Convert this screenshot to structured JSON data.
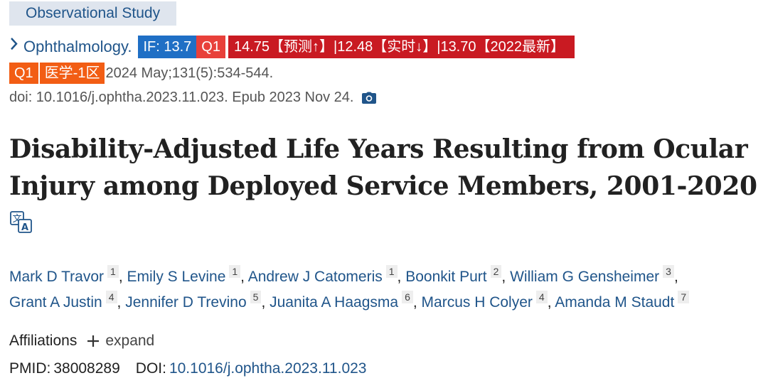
{
  "article": {
    "type_tag": "Observational Study",
    "journal": {
      "name": "Ophthalmology.",
      "impact_factor": "IF: 13.7",
      "quartile": "Q1",
      "prediction": "14.75【预测↑】|12.48【实时↓】|13.70【2022最新】",
      "cas_quartile": "Q1",
      "cas_zone": "医学-1区"
    },
    "citation": "2024 May;131(5):534-544.",
    "doi_epub": "doi: 10.1016/j.ophtha.2023.11.023. Epub 2023 Nov 24.",
    "title_line1": "Disability-Adjusted Life Years Resulting from Ocular",
    "title_line2": "Injury among Deployed Service Members, 2001-2020",
    "authors": [
      {
        "name": "Mark D Travor",
        "aff": "1"
      },
      {
        "name": "Emily S Levine",
        "aff": "1"
      },
      {
        "name": "Andrew J Catomeris",
        "aff": "1"
      },
      {
        "name": "Boonkit Purt",
        "aff": "2"
      },
      {
        "name": "William G Gensheimer",
        "aff": "3"
      },
      {
        "name": "Grant A Justin",
        "aff": "4"
      },
      {
        "name": "Jennifer D Trevino",
        "aff": "5"
      },
      {
        "name": "Juanita A Haagsma",
        "aff": "6"
      },
      {
        "name": "Marcus H Colyer",
        "aff": "4"
      },
      {
        "name": "Amanda M Staudt",
        "aff": "7"
      }
    ],
    "affiliations_label": "Affiliations",
    "expand_label": "expand",
    "pmid_label": "PMID:",
    "pmid": "38008289",
    "doi_label": "DOI:",
    "doi": "10.1016/j.ophtha.2023.11.023"
  },
  "icons": {
    "journal_chevron": "chevron-right-icon",
    "snapshot": "camera-icon",
    "translate": "translate-icon",
    "expand": "plus-icon"
  },
  "colors": {
    "link": "#20558a",
    "tag_bg": "#dfe5ee",
    "if_badge": "#1f6fc5",
    "q1_badge": "#e8403a",
    "prediction_badge": "#c91a22",
    "cas_badge": "#f25d14"
  }
}
